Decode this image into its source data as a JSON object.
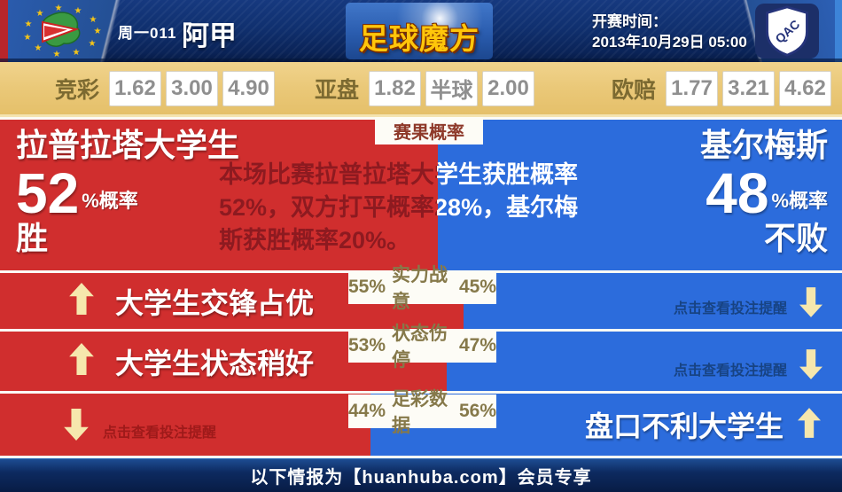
{
  "header": {
    "match_tag": "周一011",
    "league": "阿甲",
    "brand": "足球魔方",
    "kickoff_label": "开赛时间：",
    "kickoff_datetime": "2013年10月29日 05:00",
    "away_badge_text": "QAC"
  },
  "odds": {
    "groups": [
      {
        "label": "竞彩",
        "values": [
          "1.62",
          "3.00",
          "4.90"
        ]
      },
      {
        "label": "亚盘",
        "values": [
          "1.82",
          "半球",
          "2.00"
        ]
      },
      {
        "label": "欧赔",
        "values": [
          "1.77",
          "3.21",
          "4.62"
        ]
      }
    ]
  },
  "probability": {
    "tab": "赛果概率",
    "home_name": "拉普拉塔大学生",
    "home_percent": "52",
    "percent_label": "%概率",
    "home_outcome": "胜",
    "away_name": "基尔梅斯",
    "away_percent": "48",
    "away_outcome": "不败",
    "home_split": 52,
    "summary_lines": [
      "本场比赛拉普拉塔大学生获胜概率",
      "52%，双方打平概率28%，基尔梅",
      "斯获胜概率20%。"
    ]
  },
  "rows": [
    {
      "split": 55,
      "badge": {
        "home": "55%",
        "factor": "实力战意",
        "away": "45%"
      },
      "left_headline": "大学生交锋占优",
      "right_hint": "点击查看投注提醒"
    },
    {
      "split": 53,
      "badge": {
        "home": "53%",
        "factor": "状态伤停",
        "away": "47%"
      },
      "left_headline": "大学生状态稍好",
      "right_hint": "点击查看投注提醒"
    },
    {
      "split": 44,
      "badge": {
        "home": "44%",
        "factor": "足彩数据",
        "away": "56%"
      },
      "left_hint": "点击查看投注提醒",
      "right_headline": "盘口不利大学生"
    }
  ],
  "footer": {
    "text": "以下情报为【huanhuba.com】会员专享"
  },
  "colors": {
    "home_red": "#d02e2e",
    "away_blue": "#2c6cdc",
    "brand_gold": "#ffc60a",
    "odds_bar_bg": "#eac878",
    "arrow_cream": "#f6e7ad",
    "summary_maroon": "#8d1a20"
  }
}
